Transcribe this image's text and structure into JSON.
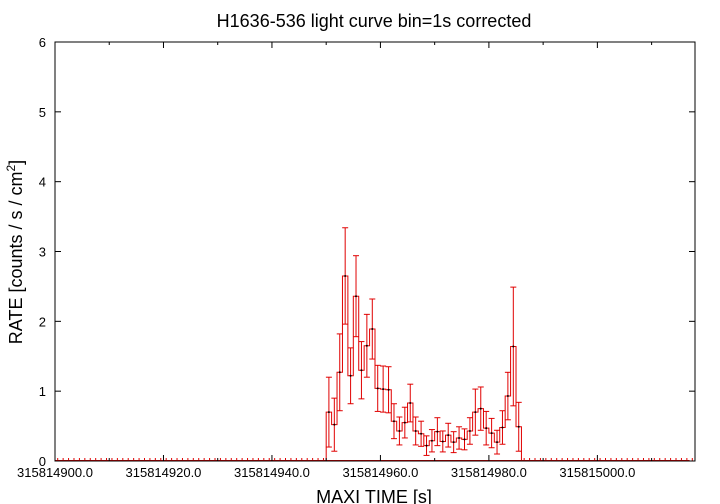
{
  "chart_data": {
    "type": "line",
    "title": "H1636-536 light curve bin=1s corrected",
    "xlabel": "MAXI TIME [s]",
    "ylabel_main": "RATE [counts / s / cm",
    "ylabel_sup": "2",
    "ylabel_close": "]",
    "xlim": [
      315814900.0,
      315815018.0
    ],
    "ylim": [
      0,
      6
    ],
    "x_ticks": [
      315814900.0,
      315814920.0,
      315814940.0,
      315814960.0,
      315814980.0,
      315815000.0
    ],
    "x_tick_labels": [
      "315814900.0",
      "315814920.0",
      "315814940.0",
      "315814960.0",
      "315814980.0",
      "315815000.0"
    ],
    "y_ticks": [
      0,
      1,
      2,
      3,
      4,
      5,
      6
    ],
    "y_tick_labels": [
      "0",
      "1",
      "2",
      "3",
      "4",
      "5",
      "6"
    ],
    "grid": false,
    "series_color": "#e00000",
    "bin_width_s": 1,
    "zero_x_start": 315814900.0,
    "zero_x_end": 315815017.0,
    "series": [
      {
        "x": [
          315814950.5,
          315814951.5,
          315814952.5,
          315814953.5,
          315814954.5,
          315814955.5,
          315814956.5,
          315814957.5,
          315814958.5,
          315814959.5,
          315814960.5,
          315814961.5,
          315814962.5,
          315814963.5,
          315814964.5,
          315814965.5,
          315814966.5,
          315814967.5,
          315814968.5,
          315814969.5,
          315814970.5,
          315814971.5,
          315814972.5,
          315814973.5,
          315814974.5,
          315814975.5,
          315814976.5,
          315814977.5,
          315814978.5,
          315814979.5,
          315814980.5,
          315814981.5,
          315814982.5,
          315814983.5,
          315814984.5,
          315814985.5
        ],
        "y": [
          0.7,
          0.52,
          1.27,
          2.65,
          1.22,
          2.36,
          1.3,
          1.65,
          1.89,
          1.04,
          1.03,
          1.02,
          0.57,
          0.43,
          0.55,
          0.83,
          0.43,
          0.39,
          0.22,
          0.29,
          0.42,
          0.28,
          0.37,
          0.27,
          0.33,
          0.31,
          0.43,
          0.7,
          0.75,
          0.47,
          0.4,
          0.27,
          0.48,
          0.93,
          1.64,
          0.49
        ],
        "err": [
          0.5,
          0.38,
          0.55,
          0.69,
          0.4,
          0.58,
          0.41,
          0.45,
          0.43,
          0.33,
          0.33,
          0.33,
          0.25,
          0.2,
          0.22,
          0.27,
          0.2,
          0.18,
          0.14,
          0.16,
          0.2,
          0.15,
          0.17,
          0.15,
          0.16,
          0.15,
          0.19,
          0.33,
          0.31,
          0.24,
          0.21,
          0.17,
          0.24,
          0.34,
          0.85,
          0.35
        ]
      }
    ]
  }
}
